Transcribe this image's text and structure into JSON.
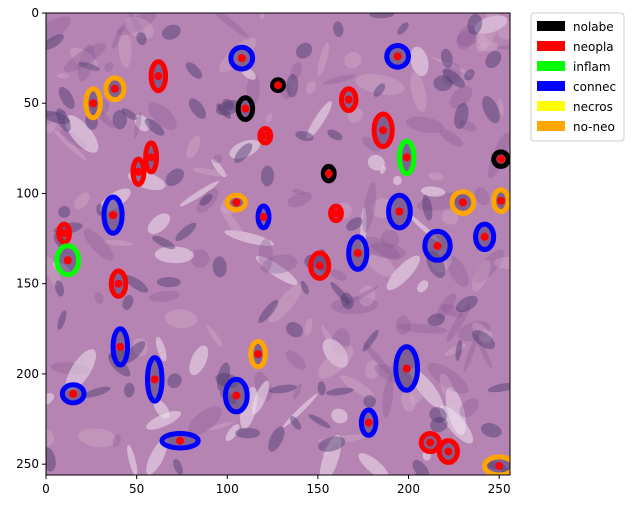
{
  "chart_data": {
    "type": "scatter",
    "description_kind": "image with instance contours and centroids",
    "xlim": [
      0,
      256
    ],
    "ylim": [
      256,
      0
    ],
    "x_ticks": [
      0,
      50,
      100,
      150,
      200,
      250
    ],
    "y_ticks": [
      0,
      50,
      100,
      150,
      200,
      250
    ],
    "background_colors": {
      "tissue_base": "#b684b3",
      "tissue_light": "#d6b1cf",
      "tissue_dark": "#8a5b96",
      "gaps": "#efe2ef"
    },
    "legend": {
      "placement": "outside-top-right",
      "entries": [
        {
          "label": "nolabe",
          "color": "#000000"
        },
        {
          "label": "neopla",
          "color": "#ff0000"
        },
        {
          "label": "inflam",
          "color": "#00ff00"
        },
        {
          "label": "connec",
          "color": "#0000ff"
        },
        {
          "label": "necros",
          "color": "#ffff00"
        },
        {
          "label": "no-neo",
          "color": "#ffa500"
        }
      ]
    },
    "centroid_color": "#ff0000",
    "nuclei": [
      {
        "x": 108,
        "y": 25,
        "rx": 6,
        "ry": 6,
        "cls": "connec"
      },
      {
        "x": 194,
        "y": 24,
        "rx": 6,
        "ry": 6,
        "cls": "connec"
      },
      {
        "x": 62,
        "y": 35,
        "rx": 4,
        "ry": 8,
        "cls": "neopla"
      },
      {
        "x": 38,
        "y": 42,
        "rx": 5,
        "ry": 6,
        "cls": "no-neo"
      },
      {
        "x": 26,
        "y": 50,
        "rx": 4,
        "ry": 8,
        "cls": "no-neo"
      },
      {
        "x": 128,
        "y": 40,
        "rx": 3,
        "ry": 3,
        "cls": "nolabe"
      },
      {
        "x": 110,
        "y": 53,
        "rx": 4,
        "ry": 6,
        "cls": "nolabe"
      },
      {
        "x": 167,
        "y": 48,
        "rx": 4,
        "ry": 6,
        "cls": "neopla"
      },
      {
        "x": 121,
        "y": 68,
        "rx": 3,
        "ry": 4,
        "cls": "neopla"
      },
      {
        "x": 186,
        "y": 65,
        "rx": 5,
        "ry": 9,
        "cls": "neopla"
      },
      {
        "x": 199,
        "y": 80,
        "rx": 4,
        "ry": 9,
        "cls": "inflam"
      },
      {
        "x": 58,
        "y": 80,
        "rx": 3,
        "ry": 8,
        "cls": "neopla"
      },
      {
        "x": 51,
        "y": 88,
        "rx": 3,
        "ry": 7,
        "cls": "neopla"
      },
      {
        "x": 156,
        "y": 89,
        "rx": 3,
        "ry": 4,
        "cls": "nolabe"
      },
      {
        "x": 251,
        "y": 81,
        "rx": 4,
        "ry": 4,
        "cls": "nolabe"
      },
      {
        "x": 105,
        "y": 105,
        "rx": 5,
        "ry": 4,
        "cls": "no-neo"
      },
      {
        "x": 230,
        "y": 105,
        "rx": 6,
        "ry": 6,
        "cls": "no-neo"
      },
      {
        "x": 251,
        "y": 104,
        "rx": 4,
        "ry": 6,
        "cls": "no-neo"
      },
      {
        "x": 37,
        "y": 112,
        "rx": 5,
        "ry": 10,
        "cls": "connec"
      },
      {
        "x": 195,
        "y": 110,
        "rx": 6,
        "ry": 9,
        "cls": "connec"
      },
      {
        "x": 160,
        "y": 111,
        "rx": 3,
        "ry": 4,
        "cls": "neopla"
      },
      {
        "x": 120,
        "y": 113,
        "rx": 3,
        "ry": 6,
        "cls": "connec"
      },
      {
        "x": 10,
        "y": 122,
        "rx": 3,
        "ry": 5,
        "cls": "neopla"
      },
      {
        "x": 242,
        "y": 124,
        "rx": 5,
        "ry": 7,
        "cls": "connec"
      },
      {
        "x": 216,
        "y": 129,
        "rx": 7,
        "ry": 8,
        "cls": "connec"
      },
      {
        "x": 172,
        "y": 133,
        "rx": 5,
        "ry": 9,
        "cls": "connec"
      },
      {
        "x": 12,
        "y": 137,
        "rx": 6,
        "ry": 8,
        "cls": "inflam"
      },
      {
        "x": 151,
        "y": 140,
        "rx": 5,
        "ry": 7,
        "cls": "neopla"
      },
      {
        "x": 40,
        "y": 150,
        "rx": 4,
        "ry": 7,
        "cls": "neopla"
      },
      {
        "x": 41,
        "y": 185,
        "rx": 4,
        "ry": 10,
        "cls": "connec"
      },
      {
        "x": 117,
        "y": 189,
        "rx": 4,
        "ry": 7,
        "cls": "no-neo"
      },
      {
        "x": 199,
        "y": 197,
        "rx": 6,
        "ry": 12,
        "cls": "connec"
      },
      {
        "x": 60,
        "y": 203,
        "rx": 4,
        "ry": 12,
        "cls": "connec"
      },
      {
        "x": 105,
        "y": 212,
        "rx": 6,
        "ry": 9,
        "cls": "connec"
      },
      {
        "x": 15,
        "y": 211,
        "rx": 6,
        "ry": 5,
        "cls": "connec"
      },
      {
        "x": 178,
        "y": 227,
        "rx": 4,
        "ry": 7,
        "cls": "connec"
      },
      {
        "x": 74,
        "y": 237,
        "rx": 10,
        "ry": 4,
        "cls": "connec"
      },
      {
        "x": 212,
        "y": 238,
        "rx": 5,
        "ry": 5,
        "cls": "neopla"
      },
      {
        "x": 222,
        "y": 243,
        "rx": 5,
        "ry": 6,
        "cls": "neopla"
      },
      {
        "x": 250,
        "y": 251,
        "rx": 8,
        "ry": 5,
        "cls": "no-neo"
      }
    ]
  }
}
